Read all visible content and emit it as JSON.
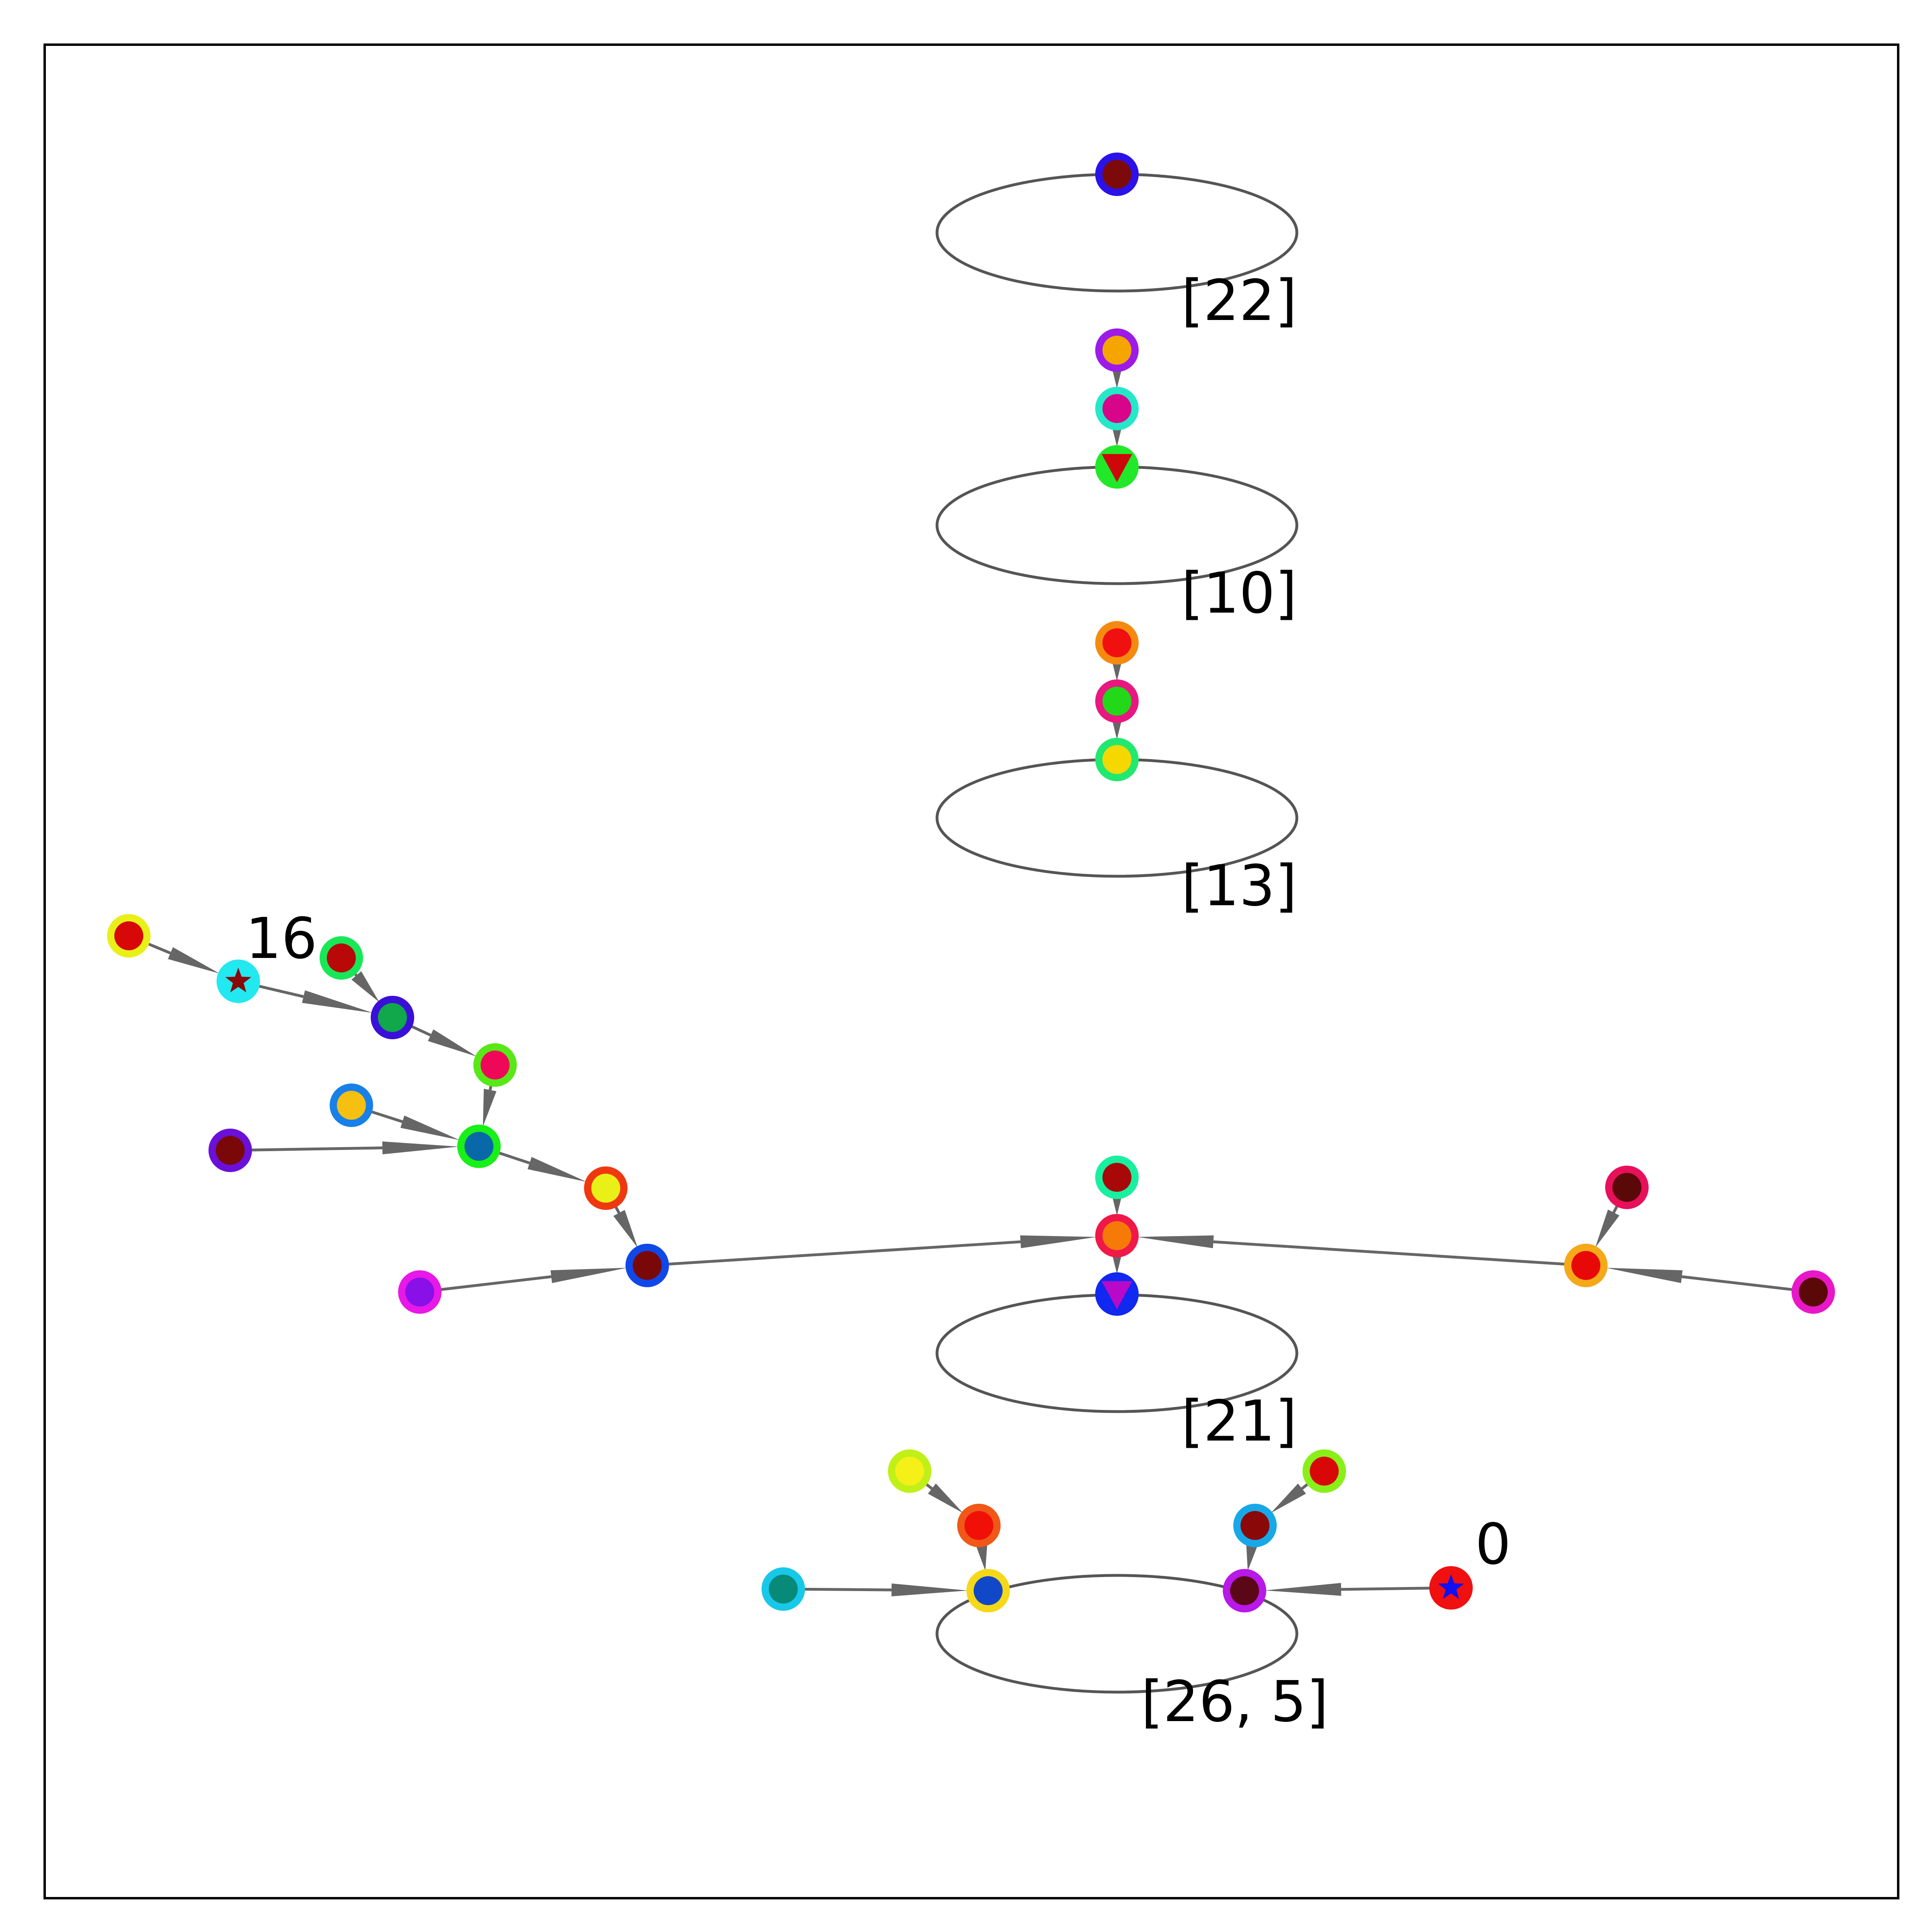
{
  "labels": {
    "cycle_22": "[22]",
    "cycle_10": "[10]",
    "cycle_13": "[13]",
    "cycle_21": "[21]",
    "cycle_26_5": "[26, 5]",
    "node_16": "16",
    "node_0": "0"
  },
  "colors": {
    "edge": "#666666",
    "cycle_outline": "#555555",
    "frame": "#000000"
  }
}
